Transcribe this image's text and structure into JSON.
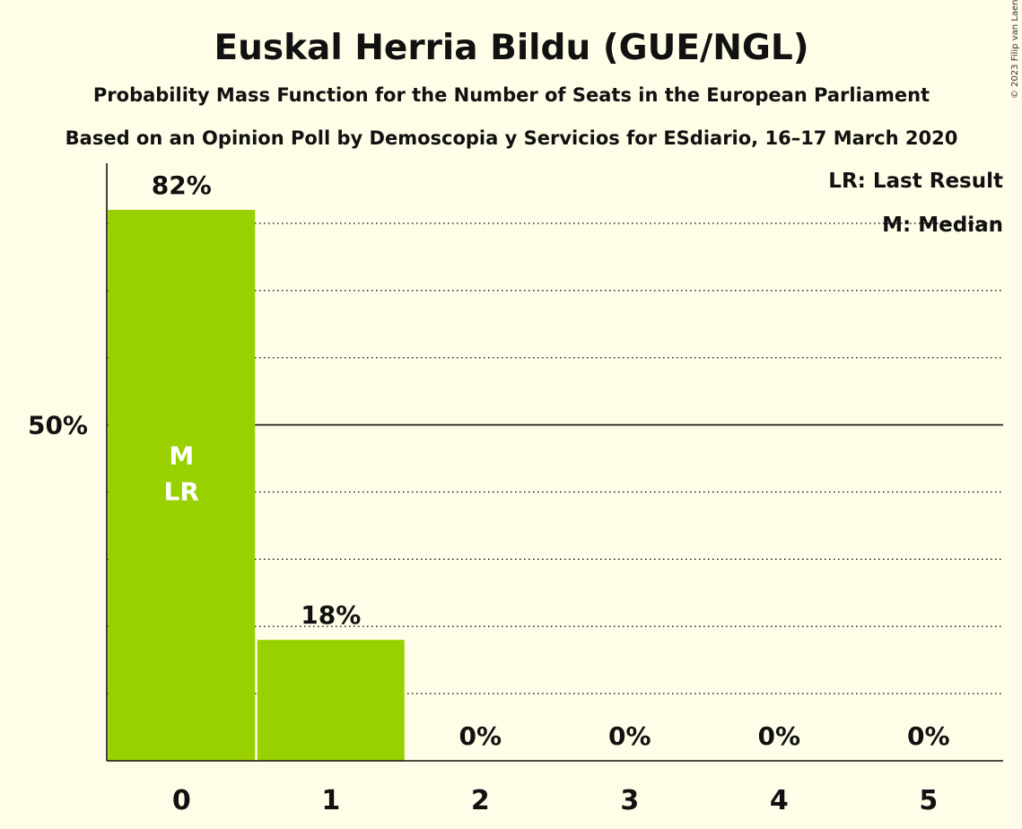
{
  "chart_data": {
    "type": "bar",
    "title": "Euskal Herria Bildu (GUE/NGL)",
    "subtitle": "Probability Mass Function for the Number of Seats in the European Parliament",
    "subtitle2": "Based on an Opinion Poll by Demoscopia y Servicios for ESdiario, 16–17 March 2020",
    "categories": [
      "0",
      "1",
      "2",
      "3",
      "4",
      "5"
    ],
    "values": [
      82,
      18,
      0,
      0,
      0,
      0
    ],
    "value_labels": [
      "82%",
      "18%",
      "0%",
      "0%",
      "0%",
      "0%"
    ],
    "ylim": [
      0,
      90
    ],
    "yticks": [
      {
        "value": 50,
        "label": "50%"
      }
    ],
    "grid_dotted_every": 10,
    "bar_color": "#99d100",
    "median_label": "M",
    "last_result_label": "LR",
    "median_index": 0,
    "last_result_index": 0,
    "legend": {
      "position": "top-right",
      "items": [
        "LR: Last Result",
        "M: Median"
      ]
    },
    "credit": "© 2023 Filip van Laenen"
  }
}
